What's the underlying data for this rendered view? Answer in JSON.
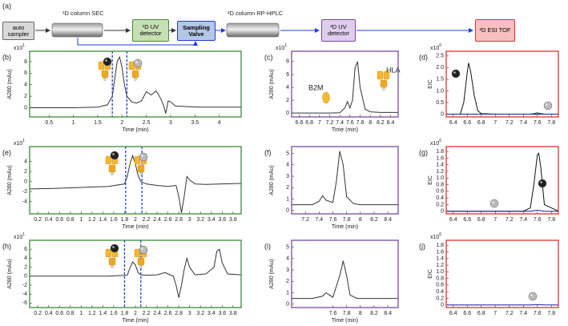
{
  "diagram": {
    "label": "(a)",
    "nodes": [
      {
        "label": "auto sampler"
      },
      {
        "label": "¹D column  SEC"
      },
      {
        "label": "¹D UV detector"
      },
      {
        "label": "Sampling Valve"
      },
      {
        "label": "²D column RP-HPLC"
      },
      {
        "label": "²D UV detector"
      },
      {
        "label": "²D ESI TOF"
      }
    ]
  },
  "chart_data": [
    {
      "type": "line",
      "label": "(b)",
      "xlabel": "Time (min)",
      "ylabel": "A280 (mAu)",
      "y_scale": "x10",
      "y_scale_exponent": "1",
      "frame_color": "#3a8a3a",
      "xlim": [
        0.1,
        4.45
      ],
      "xticks": [
        0.5,
        1.0,
        1.5,
        2.0,
        2.5,
        3.0,
        3.5,
        4.0
      ],
      "ylim": [
        -1.6,
        9.8
      ],
      "yticks": [
        0,
        2,
        4,
        6,
        8
      ],
      "window": [
        1.8,
        2.1
      ],
      "window_color": "#1f3fd0",
      "series": [
        {
          "color": "#333333",
          "x": [
            0.1,
            0.5,
            1.0,
            1.5,
            1.7,
            1.8,
            1.85,
            1.9,
            1.95,
            2.0,
            2.05,
            2.1,
            2.2,
            2.3,
            2.4,
            2.5,
            2.55,
            2.6,
            2.7,
            2.75,
            2.8,
            2.85,
            2.9,
            2.95,
            3.0,
            3.1,
            3.3,
            3.6,
            4.0,
            4.45
          ],
          "values": [
            0,
            0,
            0,
            0.1,
            0.5,
            2,
            5,
            8,
            8.8,
            7,
            4,
            2,
            1,
            0.8,
            1.2,
            2.8,
            2.5,
            2.2,
            2.9,
            2.3,
            1.5,
            0.5,
            -1,
            1.2,
            1,
            0.3,
            0.2,
            0.1,
            0.1,
            0.1
          ]
        }
      ]
    },
    {
      "type": "line",
      "label": "(c)",
      "xlabel": "Time (min)",
      "ylabel": "A280 (mAu)",
      "y_scale": "x10",
      "y_scale_exponent": "1",
      "frame_color": "#7a4aa0",
      "xlim": [
        6.45,
        8.55
      ],
      "xticks": [
        6.6,
        6.8,
        7.0,
        7.2,
        7.4,
        7.6,
        7.8,
        8.0,
        8.2,
        8.4
      ],
      "ylim": [
        -0.6,
        9.6
      ],
      "yticks": [
        0,
        2,
        4,
        6,
        8
      ],
      "annotations": [
        "B2M",
        "HLA"
      ],
      "series": [
        {
          "color": "#333333",
          "x": [
            6.45,
            6.8,
            7.0,
            7.2,
            7.4,
            7.5,
            7.55,
            7.6,
            7.65,
            7.7,
            7.75,
            7.8,
            7.9,
            8.0,
            8.2,
            8.55
          ],
          "values": [
            0,
            0,
            0,
            0,
            0.05,
            0.8,
            1.8,
            0.8,
            2,
            7,
            8,
            4,
            0.6,
            0.2,
            0.1,
            0.1
          ]
        }
      ]
    },
    {
      "type": "line",
      "label": "(d)",
      "ylabel": "EIC",
      "y_scale": "x10",
      "y_scale_exponent": "6",
      "frame_color": "#e03030",
      "xlim": [
        6.3,
        7.9
      ],
      "xticks": [
        6.4,
        6.6,
        6.8,
        7.0,
        7.2,
        7.4,
        7.6,
        7.8
      ],
      "ylim": [
        -0.12,
        2.7
      ],
      "yticks": [
        0,
        0.5,
        {
          "value": 1,
          "label": "1.0"
        },
        1.5,
        {
          "value": 2,
          "label": "2.0"
        },
        2.5
      ],
      "series": [
        {
          "color": "#111111",
          "x": [
            6.3,
            6.5,
            6.55,
            6.6,
            6.62,
            6.65,
            6.7,
            6.75,
            6.8,
            7.0,
            7.9
          ],
          "values": [
            0,
            0,
            0.5,
            1.8,
            2.2,
            1.8,
            0.8,
            0.15,
            0.02,
            0,
            0
          ]
        },
        {
          "color": "#1a1a9c",
          "x": [
            6.3,
            7.5,
            7.55,
            7.6,
            7.65,
            7.7,
            7.9
          ],
          "values": [
            0,
            0,
            0.02,
            0.06,
            0.02,
            0,
            0
          ]
        }
      ]
    },
    {
      "type": "line",
      "label": "(e)",
      "xlabel": "Time (min)",
      "ylabel": "A280 (mAu)",
      "y_scale": "x10",
      "y_scale_exponent": "1",
      "frame_color": "#3a8a3a",
      "xlim": [
        0.05,
        3.95
      ],
      "xticks": [
        0.2,
        0.4,
        0.6,
        0.8,
        1,
        1.2,
        1.4,
        1.6,
        1.8,
        2,
        2.2,
        2.4,
        2.6,
        2.8,
        3,
        3.2,
        3.4,
        3.6,
        3.8
      ],
      "ylim": [
        -6.5,
        7
      ],
      "yticks": [
        -4,
        -2,
        0,
        2,
        4
      ],
      "window": [
        1.82,
        2.12
      ],
      "window_color": "#1f3fd0",
      "series": [
        {
          "color": "#333333",
          "x": [
            0.05,
            0.5,
            1.0,
            1.5,
            1.8,
            1.85,
            1.9,
            1.95,
            2.0,
            2.05,
            2.1,
            2.2,
            2.4,
            2.6,
            2.75,
            2.8,
            2.85,
            2.9,
            2.95,
            3.0,
            3.1,
            3.3,
            3.6,
            3.95
          ],
          "values": [
            -1.5,
            -1.4,
            -1.2,
            -1,
            -0.5,
            1,
            3.5,
            5.2,
            3.5,
            1.2,
            0,
            -0.5,
            -0.8,
            -1,
            -0.8,
            -3,
            -6.3,
            -3,
            1,
            0.3,
            -0.5,
            -0.6,
            -0.5,
            -0.4
          ]
        }
      ]
    },
    {
      "type": "line",
      "label": "(f)",
      "xlabel": "Time (min)",
      "ylabel": "A280 (mAu)",
      "frame_color": "#7a4aa0",
      "xlim": [
        7.0,
        8.55
      ],
      "xticks": [
        7.2,
        7.4,
        7.6,
        7.8,
        8.0,
        8.2,
        8.4
      ],
      "ylim": [
        -0.3,
        5.6
      ],
      "yticks": [
        0,
        1,
        2,
        3,
        4,
        5
      ],
      "series": [
        {
          "color": "#333333",
          "x": [
            7.0,
            7.3,
            7.4,
            7.45,
            7.5,
            7.6,
            7.65,
            7.7,
            7.75,
            7.8,
            7.9,
            8.0,
            8.55
          ],
          "values": [
            0.5,
            0.5,
            0.8,
            1.3,
            0.9,
            0.7,
            2.5,
            5.2,
            4,
            1.2,
            0.6,
            0.5,
            0.5
          ]
        }
      ]
    },
    {
      "type": "line",
      "label": "(g)",
      "ylabel": "EIC",
      "y_scale": "x10",
      "y_scale_exponent": "6",
      "frame_color": "#e03030",
      "xlim": [
        6.3,
        7.9
      ],
      "xticks": [
        6.4,
        6.6,
        6.8,
        7.0,
        7.2,
        7.4,
        7.6,
        7.8
      ],
      "ylim": [
        -0.08,
        1.95
      ],
      "yticks": [
        0,
        0.2,
        0.4,
        0.6,
        0.8,
        {
          "value": 1,
          "label": "1.0"
        },
        1.2,
        1.4,
        1.6,
        1.8
      ],
      "series": [
        {
          "color": "#111111",
          "x": [
            6.3,
            7.4,
            7.5,
            7.55,
            7.6,
            7.62,
            7.65,
            7.7,
            7.9
          ],
          "values": [
            0,
            0,
            0.1,
            0.8,
            1.7,
            1.75,
            1.3,
            0.2,
            0
          ]
        },
        {
          "color": "#1a1a9c",
          "x": [
            6.3,
            7.5,
            7.6,
            7.7,
            7.9
          ],
          "values": [
            0,
            0,
            0.03,
            0,
            0
          ]
        }
      ]
    },
    {
      "type": "line",
      "label": "(h)",
      "xlabel": "Time (min)",
      "ylabel": "A280 (mAu)",
      "y_scale": "x10",
      "y_scale_exponent": "1",
      "frame_color": "#3a8a3a",
      "xlim": [
        0.05,
        3.95
      ],
      "xticks": [
        0.2,
        0.4,
        0.6,
        0.8,
        1,
        1.2,
        1.4,
        1.6,
        1.8,
        2,
        2.2,
        2.4,
        2.6,
        2.8,
        3,
        3.2,
        3.4,
        3.6,
        3.8
      ],
      "ylim": [
        -7,
        8
      ],
      "yticks": [
        -6,
        -4,
        -2,
        0,
        2,
        4,
        6
      ],
      "window": [
        1.8,
        2.1
      ],
      "window_color": "#1f3fd0",
      "series": [
        {
          "color": "#333333",
          "x": [
            0.05,
            0.5,
            1.0,
            1.5,
            1.85,
            1.9,
            1.95,
            2.0,
            2.05,
            2.1,
            2.2,
            2.4,
            2.55,
            2.6,
            2.7,
            2.75,
            2.8,
            2.85,
            2.9,
            2.95,
            3.0,
            3.1,
            3.3,
            3.45,
            3.5,
            3.55,
            3.6,
            3.7,
            3.95
          ],
          "values": [
            0,
            0,
            0,
            0,
            0.2,
            1.8,
            3.2,
            2.5,
            0.8,
            0.3,
            0.2,
            0.3,
            0.8,
            0.5,
            0,
            -2,
            -4.8,
            -2,
            1.5,
            4,
            2,
            0.3,
            0.5,
            2,
            5.5,
            6,
            3,
            0.5,
            0.3
          ]
        }
      ]
    },
    {
      "type": "line",
      "label": "(i)",
      "xlabel": "Time (min)",
      "ylabel": "A280 (mAu)",
      "frame_color": "#7a4aa0",
      "xlim": [
        7.0,
        8.55
      ],
      "xticks": [
        7.6,
        7.8,
        8.0,
        8.2,
        8.4
      ],
      "ylim": [
        -0.3,
        5.6
      ],
      "yticks": [
        0,
        1,
        2,
        3,
        4,
        5
      ],
      "series": [
        {
          "color": "#333333",
          "x": [
            7.0,
            7.3,
            7.45,
            7.5,
            7.55,
            7.6,
            7.7,
            7.75,
            7.8,
            7.85,
            7.95,
            8.1,
            8.55
          ],
          "values": [
            0.5,
            0.5,
            0.7,
            1.0,
            0.8,
            0.6,
            2.5,
            3.8,
            2.5,
            0.8,
            0.5,
            0.5,
            0.5
          ]
        }
      ]
    },
    {
      "type": "line",
      "label": "(j)",
      "ylabel": "EIC",
      "y_scale": "x10",
      "y_scale_exponent": "6",
      "frame_color": "#e03030",
      "xlim": [
        6.3,
        7.9
      ],
      "xticks": [
        6.4,
        6.6,
        6.8,
        7.0,
        7.2,
        7.4,
        7.6,
        7.8
      ],
      "ylim": [
        -0.08,
        1.95
      ],
      "yticks": [
        0,
        0.2,
        0.4,
        0.6,
        0.8,
        {
          "value": 1,
          "label": "1.0"
        },
        1.2,
        1.4,
        1.6,
        1.8
      ],
      "series": [
        {
          "color": "#1a1a9c",
          "x": [
            6.3,
            7.5,
            7.6,
            7.7,
            7.9
          ],
          "values": [
            0,
            0,
            0.01,
            0,
            0
          ]
        }
      ]
    }
  ]
}
